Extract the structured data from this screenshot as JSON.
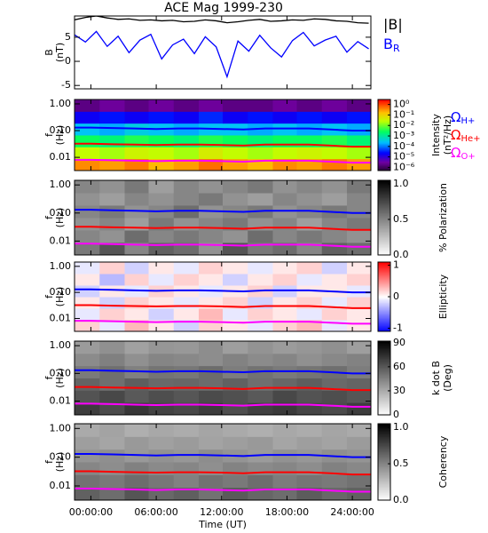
{
  "chart_data": [
    {
      "type": "line",
      "title": "ACE Mag 1999-230",
      "ylabel": [
        "B",
        "(nT)"
      ],
      "x": [
        -1.5,
        -0.5,
        0.5,
        1.5,
        2.5,
        3.5,
        4.5,
        5.5,
        6.5,
        7.5,
        8.5,
        9.5,
        10.5,
        11.5,
        12.5,
        13.5,
        14.5,
        15.5,
        16.5,
        17.5,
        18.5,
        19.5,
        20.5,
        21.5,
        22.5,
        23.5,
        24.5,
        25.5
      ],
      "ylim": [
        -5.7,
        9.4
      ],
      "yticks": [
        -5,
        0,
        5
      ],
      "series": [
        {
          "name": "|B|",
          "color": "#000000",
          "values": [
            8.6,
            9.1,
            9.4,
            9.0,
            8.7,
            8.8,
            8.5,
            8.6,
            8.4,
            8.5,
            8.2,
            8.3,
            8.6,
            8.4,
            8.0,
            8.2,
            8.5,
            8.7,
            8.3,
            8.4,
            8.6,
            8.5,
            8.8,
            8.7,
            8.4,
            8.3,
            8.0,
            7.9
          ]
        },
        {
          "name": "B",
          "subscript": "R",
          "color": "#0000ff",
          "values": [
            5.5,
            4.0,
            6.2,
            3.1,
            5.2,
            1.8,
            4.4,
            5.6,
            0.5,
            3.4,
            4.6,
            1.6,
            5.1,
            3.0,
            -3.2,
            4.2,
            2.1,
            5.4,
            2.8,
            0.9,
            4.3,
            6.0,
            3.2,
            4.4,
            5.2,
            1.9,
            4.1,
            2.6
          ]
        }
      ]
    },
    {
      "type": "heatmap",
      "ylabel": [
        "f",
        "(Hz)"
      ],
      "ylim": [
        0.0032,
        1.46
      ],
      "ylog": true,
      "yticks": [
        {
          "value": 1,
          "label": "1.00"
        },
        {
          "value": 0.1,
          "label": "0.10"
        },
        {
          "value": 0.01,
          "label": "0.01"
        }
      ],
      "freq_edges": [
        0.0032,
        0.0089,
        0.0247,
        0.0684,
        0.19,
        0.526,
        1.46
      ],
      "time_edges": [
        -1.5,
        0.8,
        3.1,
        5.3,
        7.6,
        9.9,
        12.1,
        14.4,
        16.7,
        18.9,
        21.2,
        23.5,
        25.7
      ],
      "colormap": "rainbow",
      "clog": true,
      "clim": [
        5e-07,
        3
      ],
      "cticks": [
        {
          "value": 1,
          "label": "10⁰"
        },
        {
          "value": 0.1,
          "label": "10⁻¹"
        },
        {
          "value": 0.01,
          "label": "10⁻²"
        },
        {
          "value": 0.001,
          "label": "10⁻³"
        },
        {
          "value": 0.0001,
          "label": "10⁻⁴"
        },
        {
          "value": 1e-05,
          "label": "10⁻⁵"
        },
        {
          "value": 1e-06,
          "label": "10⁻⁶"
        }
      ],
      "clabel": [
        "Intensity",
        "(nT²/Hz)"
      ],
      "z": [
        [
          0.4,
          0.3,
          0.5,
          0.2,
          0.3,
          0.6,
          0.3,
          0.2,
          0.4,
          0.3,
          0.5,
          0.3
        ],
        [
          0.03,
          0.02,
          0.04,
          0.03,
          0.02,
          0.05,
          0.03,
          0.02,
          0.03,
          0.04,
          0.03,
          0.02
        ],
        [
          0.003,
          0.002,
          0.004,
          0.003,
          0.002,
          0.004,
          0.003,
          0.002,
          0.003,
          0.003,
          0.004,
          0.002
        ],
        [
          0.0003,
          0.0002,
          0.0004,
          0.0003,
          0.0002,
          0.0003,
          0.0003,
          0.0002,
          0.0003,
          0.0002,
          0.0003,
          0.0002
        ],
        [
          2e-05,
          3e-05,
          2e-05,
          3e-05,
          2e-05,
          4e-05,
          2e-05,
          3e-05,
          2e-05,
          3e-05,
          2e-05,
          3e-05
        ],
        [
          2e-06,
          3e-06,
          2e-06,
          3e-06,
          2e-06,
          3e-06,
          2e-06,
          2e-06,
          3e-06,
          2e-06,
          3e-06,
          2e-06
        ]
      ],
      "overlay_symbol": "Ω",
      "overlay_x": [
        -1.5,
        0,
        2,
        4,
        6,
        8,
        10,
        12,
        14,
        16,
        18,
        20,
        22,
        24,
        25.7
      ],
      "overlay": [
        {
          "name": "H+",
          "color": "#0000ff",
          "values": [
            0.13,
            0.13,
            0.125,
            0.12,
            0.115,
            0.12,
            0.12,
            0.115,
            0.11,
            0.12,
            0.12,
            0.12,
            0.11,
            0.1,
            0.1
          ]
        },
        {
          "name": "He+",
          "color": "#ff0000",
          "values": [
            0.0325,
            0.0325,
            0.031,
            0.03,
            0.029,
            0.03,
            0.03,
            0.029,
            0.0275,
            0.03,
            0.03,
            0.03,
            0.0275,
            0.025,
            0.025
          ]
        },
        {
          "name": "O+",
          "color": "#ff00ff",
          "values": [
            0.0081,
            0.0081,
            0.0078,
            0.0075,
            0.0072,
            0.0075,
            0.0075,
            0.0072,
            0.0069,
            0.0075,
            0.0075,
            0.0075,
            0.0069,
            0.0063,
            0.0063
          ]
        }
      ]
    },
    {
      "type": "heatmap",
      "ylabel": [
        "f",
        "(Hz)"
      ],
      "ylim": [
        0.0032,
        1.46
      ],
      "ylog": true,
      "yticks": [
        {
          "value": 1,
          "label": "1.00"
        },
        {
          "value": 0.1,
          "label": "0.10"
        },
        {
          "value": 0.01,
          "label": "0.01"
        }
      ],
      "colormap": "gray",
      "clog": false,
      "clim": [
        0,
        1.05
      ],
      "cticks": [
        {
          "value": 1,
          "label": "1.0"
        },
        {
          "value": 0.5,
          "label": "0.5"
        },
        {
          "value": 0,
          "label": "0.0"
        }
      ],
      "clabel": [
        "% Polarization"
      ],
      "z": [
        [
          0.55,
          0.7,
          0.5,
          0.65,
          0.6,
          0.45,
          0.7,
          0.55,
          0.6,
          0.5,
          0.65,
          0.6
        ],
        [
          0.5,
          0.45,
          0.6,
          0.5,
          0.55,
          0.5,
          0.45,
          0.6,
          0.5,
          0.55,
          0.5,
          0.45
        ],
        [
          0.45,
          0.5,
          0.4,
          0.55,
          0.45,
          0.5,
          0.55,
          0.45,
          0.5,
          0.4,
          0.5,
          0.55
        ],
        [
          0.5,
          0.55,
          0.45,
          0.5,
          0.6,
          0.45,
          0.5,
          0.55,
          0.45,
          0.5,
          0.55,
          0.5
        ],
        [
          0.45,
          0.4,
          0.5,
          0.45,
          0.5,
          0.55,
          0.45,
          0.4,
          0.5,
          0.45,
          0.4,
          0.5
        ],
        [
          0.5,
          0.45,
          0.55,
          0.4,
          0.5,
          0.45,
          0.5,
          0.55,
          0.45,
          0.5,
          0.45,
          0.55
        ]
      ]
    },
    {
      "type": "heatmap",
      "ylabel": [
        "f",
        "(Hz)"
      ],
      "ylim": [
        0.0032,
        1.46
      ],
      "ylog": true,
      "yticks": [
        {
          "value": 1,
          "label": "1.00"
        },
        {
          "value": 0.1,
          "label": "0.10"
        },
        {
          "value": 0.01,
          "label": "0.01"
        }
      ],
      "colormap": "bwr",
      "clog": false,
      "clim": [
        -1.1,
        1.1
      ],
      "cticks": [
        1,
        0,
        -1
      ],
      "clabel": [
        "Ellipticity"
      ],
      "z": [
        [
          0.2,
          -0.1,
          0.3,
          0.1,
          -0.2,
          0.2,
          0.1,
          -0.1,
          0.2,
          0.3,
          -0.1,
          0.1
        ],
        [
          -0.1,
          0.2,
          0.1,
          -0.2,
          0.1,
          0.3,
          -0.1,
          0.2,
          0.1,
          -0.1,
          0.2,
          0.1
        ],
        [
          0.1,
          -0.2,
          0.2,
          0.1,
          -0.1,
          0.1,
          0.2,
          -0.2,
          0.1,
          0.2,
          -0.1,
          0.2
        ],
        [
          -0.2,
          0.1,
          -0.1,
          0.2,
          0.1,
          -0.1,
          0.1,
          0.2,
          -0.2,
          0.1,
          0.1,
          -0.1
        ],
        [
          0.1,
          -0.3,
          0.2,
          -0.1,
          0.2,
          0.1,
          -0.2,
          0.1,
          0.2,
          -0.1,
          0.1,
          0.2
        ],
        [
          -0.1,
          0.2,
          -0.2,
          0.1,
          -0.1,
          0.2,
          0.1,
          -0.1,
          0.1,
          0.2,
          -0.2,
          0.1
        ]
      ]
    },
    {
      "type": "heatmap",
      "ylabel": [
        "f",
        "(Hz)"
      ],
      "ylim": [
        0.0032,
        1.46
      ],
      "ylog": true,
      "yticks": [
        {
          "value": 1,
          "label": "1.00"
        },
        {
          "value": 0.1,
          "label": "0.10"
        },
        {
          "value": 0.01,
          "label": "0.01"
        }
      ],
      "colormap": "gray",
      "clog": false,
      "clim": [
        0,
        92
      ],
      "cticks": [
        90,
        60,
        30,
        0
      ],
      "clabel": [
        "k dot B",
        "(Deg)"
      ],
      "z": [
        [
          70,
          65,
          72,
          68,
          66,
          70,
          64,
          69,
          71,
          67,
          65,
          70
        ],
        [
          62,
          66,
          60,
          64,
          61,
          65,
          63,
          60,
          66,
          62,
          64,
          61
        ],
        [
          56,
          52,
          58,
          54,
          55,
          53,
          57,
          52,
          55,
          58,
          54,
          56
        ],
        [
          48,
          52,
          46,
          50,
          49,
          53,
          47,
          51,
          48,
          50,
          52,
          47
        ],
        [
          42,
          46,
          40,
          44,
          43,
          41,
          45,
          42,
          44,
          40,
          43,
          45
        ],
        [
          36,
          40,
          34,
          38,
          37,
          41,
          35,
          39,
          36,
          38,
          40,
          35
        ]
      ]
    },
    {
      "type": "heatmap",
      "ylabel": [
        "f",
        "(Hz)"
      ],
      "ylim": [
        0.0032,
        1.46
      ],
      "ylog": true,
      "yticks": [
        {
          "value": 1,
          "label": "1.00"
        },
        {
          "value": 0.1,
          "label": "0.10"
        },
        {
          "value": 0.01,
          "label": "0.01"
        }
      ],
      "colormap": "gray",
      "clog": false,
      "clim": [
        0,
        1.05
      ],
      "cticks": [
        {
          "value": 1,
          "label": "1.0"
        },
        {
          "value": 0.5,
          "label": "0.5"
        },
        {
          "value": 0,
          "label": "0.0"
        }
      ],
      "clabel": [
        "Coherency"
      ],
      "z": [
        [
          0.65,
          0.6,
          0.7,
          0.62,
          0.66,
          0.58,
          0.68,
          0.63,
          0.6,
          0.67,
          0.62,
          0.65
        ],
        [
          0.58,
          0.55,
          0.6,
          0.56,
          0.52,
          0.58,
          0.55,
          0.6,
          0.54,
          0.57,
          0.55,
          0.58
        ],
        [
          0.5,
          0.47,
          0.52,
          0.48,
          0.5,
          0.46,
          0.51,
          0.48,
          0.5,
          0.47,
          0.52,
          0.49
        ],
        [
          0.44,
          0.46,
          0.42,
          0.45,
          0.43,
          0.47,
          0.44,
          0.41,
          0.45,
          0.43,
          0.46,
          0.44
        ],
        [
          0.4,
          0.37,
          0.42,
          0.39,
          0.41,
          0.38,
          0.4,
          0.42,
          0.37,
          0.4,
          0.38,
          0.41
        ],
        [
          0.35,
          0.38,
          0.33,
          0.36,
          0.34,
          0.37,
          0.35,
          0.33,
          0.36,
          0.34,
          0.37,
          0.35
        ]
      ],
      "xlim": [
        -1.5,
        25.7
      ],
      "xticks": [
        {
          "value": 0,
          "label": "00:00:00"
        },
        {
          "value": 6,
          "label": "06:00:00"
        },
        {
          "value": 12,
          "label": "12:00:00"
        },
        {
          "value": 18,
          "label": "18:00:00"
        },
        {
          "value": 24,
          "label": "24:00:00"
        }
      ],
      "xlabel": "Time (UT)"
    }
  ]
}
